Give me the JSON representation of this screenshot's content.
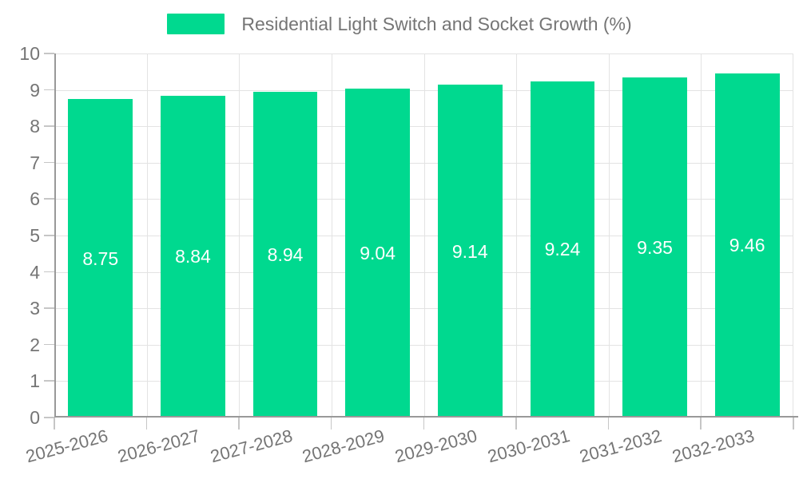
{
  "chart_data": {
    "type": "bar",
    "title": "Residential Light Switch and Socket Growth (%)",
    "series_name": "Residential Light Switch and Socket Growth (%)",
    "categories": [
      "2025-2026",
      "2026-2027",
      "2027-2028",
      "2028-2029",
      "2029-2030",
      "2030-2031",
      "2031-2032",
      "2032-2033"
    ],
    "values": [
      8.75,
      8.84,
      8.94,
      9.04,
      9.14,
      9.24,
      9.35,
      9.46
    ],
    "value_label_decimals": 2,
    "xlabel": "",
    "ylabel": "",
    "ylim": [
      0,
      10
    ],
    "ytick_step": 1,
    "yticks": [
      0,
      1,
      2,
      3,
      4,
      5,
      6,
      7,
      8,
      9,
      10
    ],
    "grid": true,
    "legend_position": "top-center",
    "x_label_rotation_deg": 15,
    "colors": {
      "bar": "#00d98f",
      "value_label": "#ffffff",
      "axis_text": "#757575",
      "grid_line": "#e3e3e3",
      "axis_line": "#999999",
      "tick": "#c6c6c6",
      "background": "#ffffff"
    }
  }
}
